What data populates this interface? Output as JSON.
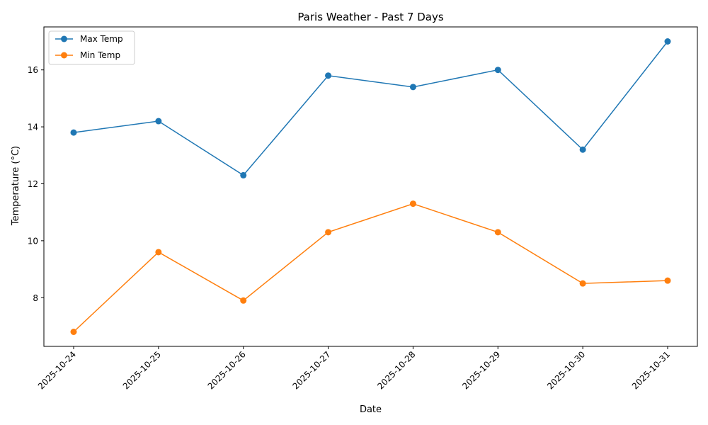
{
  "chart_data": {
    "type": "line",
    "title": "Paris Weather - Past 7 Days",
    "xlabel": "Date",
    "ylabel": "Temperature (°C)",
    "categories": [
      "2025-10-24",
      "2025-10-25",
      "2025-10-26",
      "2025-10-27",
      "2025-10-28",
      "2025-10-29",
      "2025-10-30",
      "2025-10-31"
    ],
    "series": [
      {
        "name": "Max Temp",
        "color": "#1f77b4",
        "values": [
          13.8,
          14.2,
          12.3,
          15.8,
          15.4,
          16.0,
          13.2,
          17.0
        ]
      },
      {
        "name": "Min Temp",
        "color": "#ff7f0e",
        "values": [
          6.8,
          9.6,
          7.9,
          10.3,
          11.3,
          10.3,
          8.5,
          8.6
        ]
      }
    ],
    "ylim": [
      6.29,
      17.51
    ],
    "yticks": [
      8,
      10,
      12,
      14,
      16
    ],
    "grid": false,
    "legend": "top-left",
    "marker": "circle"
  }
}
